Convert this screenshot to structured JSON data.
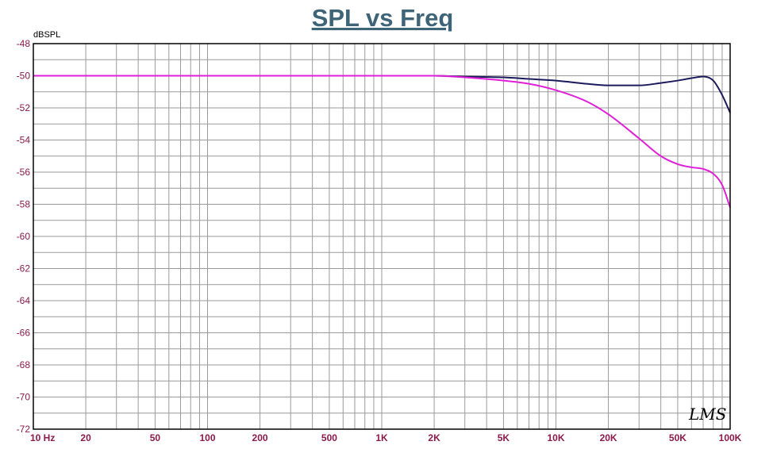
{
  "chart_data": {
    "type": "line",
    "title": "SPL vs Freq",
    "ylabel": "dBSPL",
    "xlabel": "",
    "xscale": "log",
    "xlim": [
      10,
      100000
    ],
    "ylim": [
      -72,
      -48
    ],
    "yticks": [
      -48,
      -50,
      -52,
      -54,
      -56,
      -58,
      -60,
      -62,
      -64,
      -66,
      -68,
      -70,
      -72
    ],
    "xtick_values": [
      10,
      20,
      50,
      100,
      200,
      500,
      1000,
      2000,
      5000,
      10000,
      20000,
      50000,
      100000
    ],
    "xtick_labels": [
      "10 Hz",
      "20",
      "50",
      "100",
      "200",
      "500",
      "1K",
      "2K",
      "5K",
      "10K",
      "20K",
      "50K",
      "100K"
    ],
    "grid": true,
    "watermark": "LMS",
    "series": [
      {
        "color": "#1a1a5c",
        "x": [
          10,
          100,
          1000,
          2000,
          3000,
          5000,
          7000,
          10000,
          15000,
          20000,
          30000,
          40000,
          50000,
          60000,
          70000,
          80000,
          90000,
          100000
        ],
        "y": [
          -50,
          -50,
          -50,
          -50,
          -50.05,
          -50.1,
          -50.2,
          -50.3,
          -50.5,
          -50.6,
          -50.6,
          -50.45,
          -50.3,
          -50.15,
          -50.05,
          -50.3,
          -51.2,
          -52.3
        ]
      },
      {
        "color": "#e020d8",
        "x": [
          10,
          100,
          1000,
          2000,
          3000,
          5000,
          7000,
          10000,
          15000,
          20000,
          30000,
          40000,
          50000,
          60000,
          70000,
          80000,
          90000,
          100000
        ],
        "y": [
          -50,
          -50,
          -50,
          -50,
          -50.1,
          -50.3,
          -50.5,
          -50.9,
          -51.6,
          -52.4,
          -53.9,
          -55,
          -55.5,
          -55.7,
          -55.8,
          -56.1,
          -56.8,
          -58.2
        ]
      }
    ]
  }
}
